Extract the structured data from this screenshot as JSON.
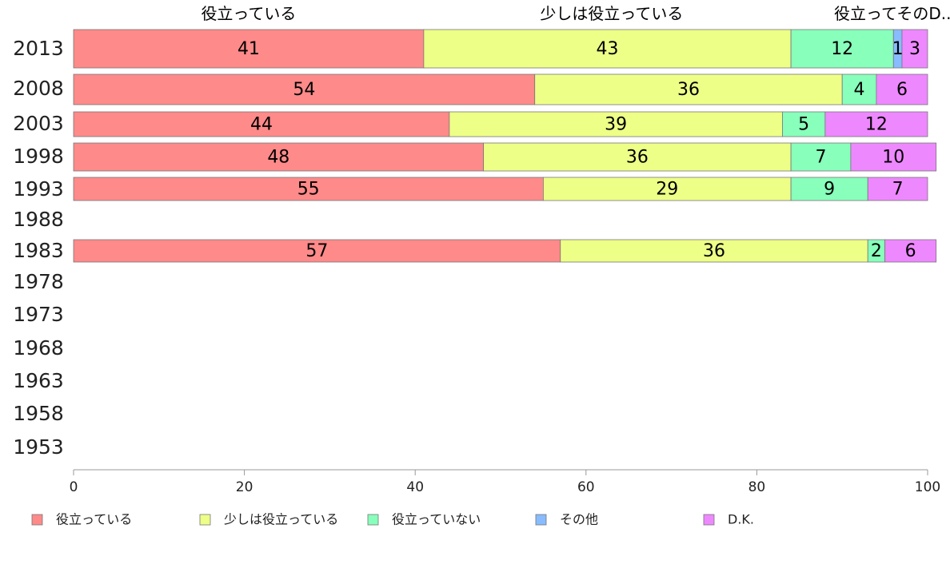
{
  "chart_data": {
    "type": "bar",
    "orientation": "horizontal",
    "stacked": true,
    "categories": [
      "2013",
      "2008",
      "2003",
      "1998",
      "1993",
      "1988",
      "1983",
      "1978",
      "1973",
      "1968",
      "1963",
      "1958",
      "1953"
    ],
    "series": [
      {
        "name": "役立っている",
        "color": "#ff8a8a",
        "values": [
          41,
          54,
          44,
          48,
          55,
          null,
          57,
          null,
          null,
          null,
          null,
          null,
          null
        ]
      },
      {
        "name": "少しは役立っている",
        "color": "#eeff88",
        "values": [
          43,
          36,
          39,
          36,
          29,
          null,
          36,
          null,
          null,
          null,
          null,
          null,
          null
        ]
      },
      {
        "name": "役立っていない",
        "color": "#88ffbb",
        "values": [
          12,
          4,
          5,
          7,
          9,
          null,
          2,
          null,
          null,
          null,
          null,
          null,
          null
        ]
      },
      {
        "name": "その他",
        "color": "#88bbff",
        "values": [
          1,
          0,
          0,
          0,
          0,
          null,
          0,
          null,
          null,
          null,
          null,
          null,
          null
        ]
      },
      {
        "name": "D.K.",
        "color": "#ee88ff",
        "values": [
          3,
          6,
          12,
          10,
          7,
          null,
          6,
          null,
          null,
          null,
          null,
          null,
          null
        ]
      }
    ],
    "top_labels": [
      {
        "text": "役立っている",
        "value": 20.5
      },
      {
        "text": "少しは役立っている",
        "value": 63
      },
      {
        "text": "役立ってそのD....",
        "value": 96.5
      }
    ],
    "xlim": [
      0,
      100
    ],
    "xticks": [
      "0",
      "20",
      "40",
      "60",
      "80",
      "100"
    ],
    "grid": false,
    "legend_position": "bottom"
  }
}
